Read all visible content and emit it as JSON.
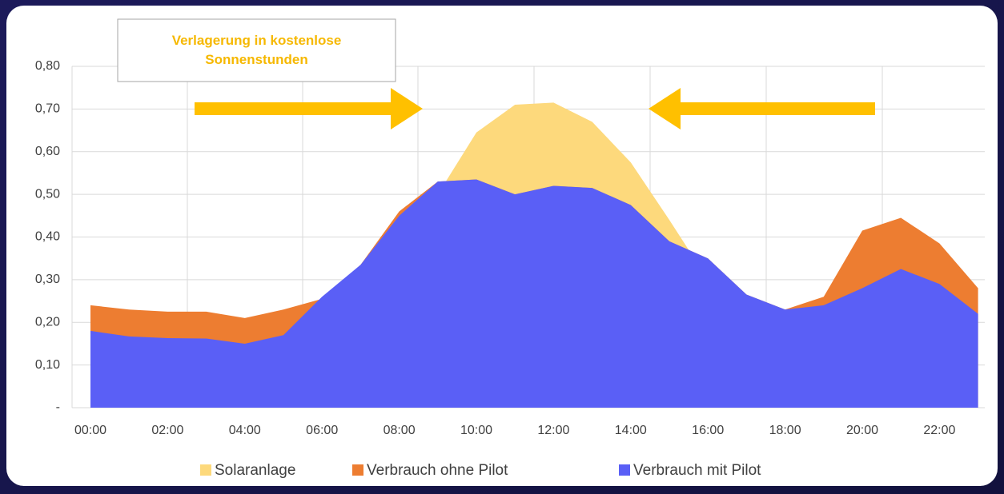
{
  "chart_data": {
    "type": "area",
    "annotation": "Verlagerung in kostenlose Sonnenstunden",
    "categories": [
      "00:00",
      null,
      "02:00",
      null,
      "04:00",
      null,
      "06:00",
      null,
      "08:00",
      null,
      "10:00",
      null,
      "12:00",
      null,
      "14:00",
      null,
      "16:00",
      null,
      "18:00",
      null,
      "20:00",
      null,
      "22:00",
      null
    ],
    "series": [
      {
        "name": "Solaranlage",
        "color": "#fdd97c",
        "values": [
          0,
          0,
          0,
          0,
          0,
          0,
          0.05,
          0.15,
          0.3,
          0.5,
          0.645,
          0.71,
          0.715,
          0.67,
          0.575,
          0.44,
          0.3,
          0.15,
          0.05,
          0,
          0,
          0,
          0,
          0
        ]
      },
      {
        "name": "Verbrauch ohne Pilot",
        "color": "#ed7d31",
        "values": [
          0.24,
          0.23,
          0.225,
          0.225,
          0.21,
          0.23,
          0.255,
          0.335,
          0.46,
          0.53,
          0.535,
          0.5,
          0.52,
          0.515,
          0.475,
          0.39,
          0.35,
          0.265,
          0.23,
          0.26,
          0.415,
          0.445,
          0.385,
          0.28
        ]
      },
      {
        "name": "Verbrauch mit Pilot",
        "color": "#5a5ff6",
        "values": [
          0.18,
          0.167,
          0.163,
          0.162,
          0.15,
          0.17,
          0.26,
          0.335,
          0.45,
          0.53,
          0.535,
          0.5,
          0.52,
          0.515,
          0.475,
          0.39,
          0.35,
          0.265,
          0.23,
          0.24,
          0.28,
          0.325,
          0.29,
          0.22
        ]
      }
    ],
    "ylim": [
      0,
      0.8
    ],
    "yticks": [
      {
        "value": 0,
        "label": "-"
      },
      {
        "value": 0.1,
        "label": "0,10"
      },
      {
        "value": 0.2,
        "label": "0,20"
      },
      {
        "value": 0.3,
        "label": "0,30"
      },
      {
        "value": 0.4,
        "label": "0,40"
      },
      {
        "value": 0.5,
        "label": "0,50"
      },
      {
        "value": 0.6,
        "label": "0,60"
      },
      {
        "value": 0.7,
        "label": "0,70"
      },
      {
        "value": 0.8,
        "label": "0,80"
      }
    ],
    "legend": "bottom"
  }
}
